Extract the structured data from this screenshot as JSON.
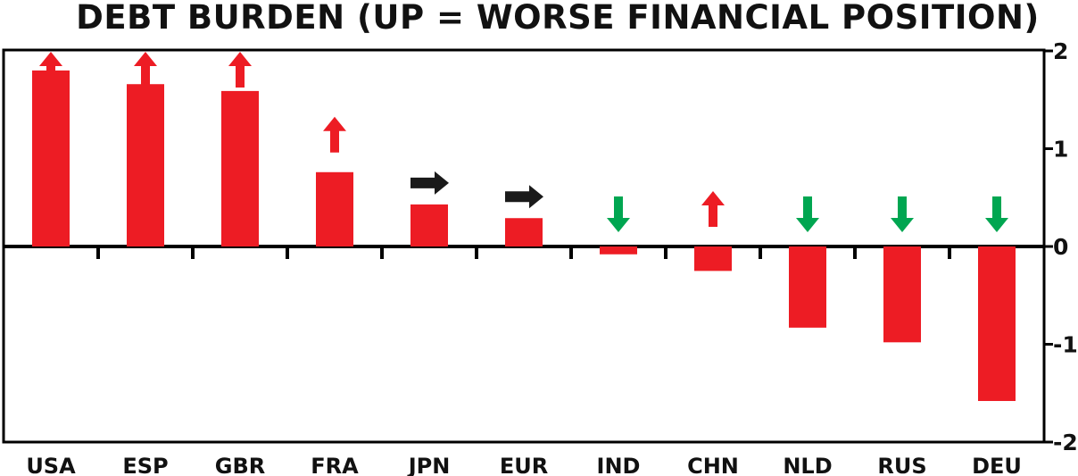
{
  "chart_data": {
    "type": "bar",
    "title": "DEBT BURDEN (UP = WORSE FINANCIAL POSITION)",
    "xlabel": "",
    "ylabel": "",
    "categories": [
      "USA",
      "ESP",
      "GBR",
      "FRA",
      "JPN",
      "EUR",
      "IND",
      "CHN",
      "NLD",
      "RUS",
      "DEU"
    ],
    "values": [
      1.8,
      1.66,
      1.59,
      0.76,
      0.43,
      0.29,
      -0.08,
      -0.25,
      -0.83,
      -0.98,
      -1.58
    ],
    "trend": [
      "up",
      "up",
      "up",
      "up",
      "right",
      "right",
      "down",
      "up",
      "down",
      "down",
      "down"
    ],
    "yticks": [
      "2",
      "1",
      "0",
      "-1",
      "-2"
    ],
    "ylim": [
      -2,
      2
    ],
    "y_axis_side": "right",
    "grid": false,
    "colors": {
      "bar": "#ed1c24",
      "up": "#ed1c24",
      "right": "#1a1a1a",
      "down": "#00a651",
      "axis": "#000000"
    }
  }
}
